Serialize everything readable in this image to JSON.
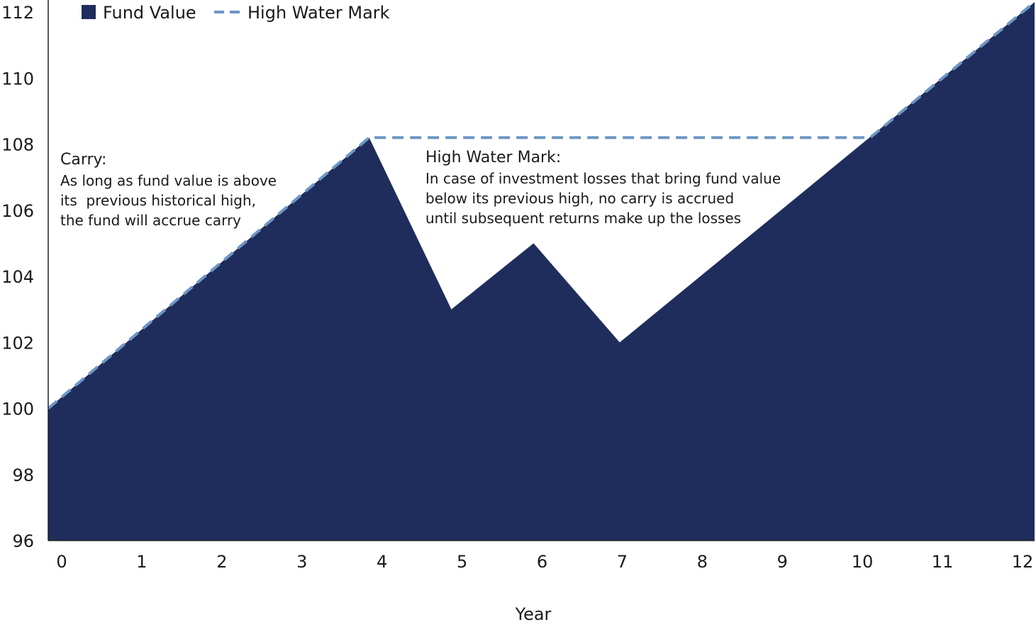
{
  "chart_data": {
    "type": "area",
    "title": "",
    "xlabel": "Year",
    "ylabel": "",
    "x": [
      0,
      1,
      2,
      3,
      4,
      5,
      6,
      7,
      8,
      9,
      10,
      11,
      12
    ],
    "x_ticks": [
      "0",
      "1",
      "2",
      "3",
      "4",
      "5",
      "6",
      "7",
      "8",
      "9",
      "10",
      "11",
      "12"
    ],
    "y_ticks": [
      "96",
      "98",
      "100",
      "102",
      "104",
      "106",
      "108",
      "110",
      "112"
    ],
    "ylim": [
      96,
      112
    ],
    "xlim": [
      0,
      12.6
    ],
    "grid": false,
    "legend_position": "top-left",
    "series": [
      {
        "name": "Fund Value",
        "style": "filled-area",
        "color": "#1f2d5c",
        "points": [
          [
            0,
            100
          ],
          [
            4.1,
            108.2
          ],
          [
            5.15,
            103
          ],
          [
            6.2,
            105
          ],
          [
            7.3,
            102
          ],
          [
            12.6,
            112.3
          ]
        ]
      },
      {
        "name": "High Water Mark",
        "style": "dashed-line",
        "color": "#6d96c4",
        "points": [
          [
            0,
            100
          ],
          [
            4.1,
            108.2
          ],
          [
            10.5,
            108.2
          ],
          [
            12.6,
            112.3
          ]
        ]
      }
    ],
    "annotations": [
      {
        "title": "Carry:",
        "lines": [
          "As long as fund value is above",
          "its  previous historical high,",
          "the fund will accrue carry"
        ]
      },
      {
        "title": "High Water Mark:",
        "lines": [
          "In case of investment losses that bring fund value",
          "below its previous high, no carry is accrued",
          "until subsequent returns make up the losses"
        ]
      }
    ]
  }
}
